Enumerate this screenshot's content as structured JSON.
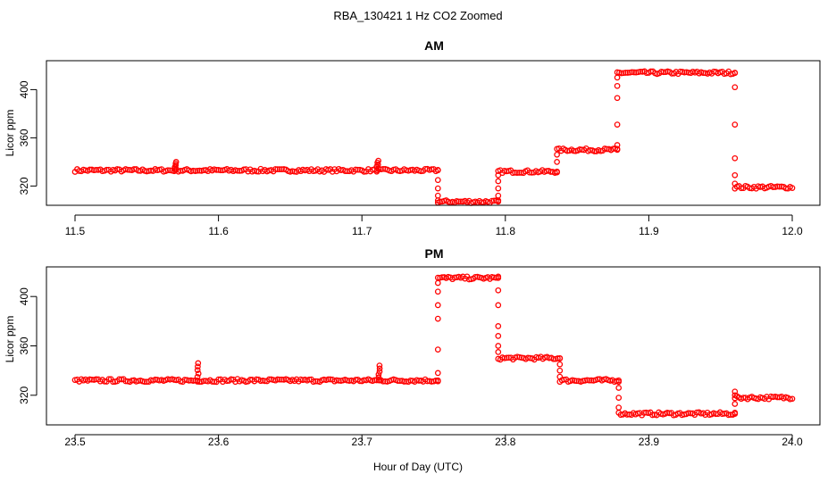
{
  "figure": {
    "title": "RBA_130421  1 Hz CO2 Zoomed",
    "xlabel": "Hour of Day (UTC)"
  },
  "colors": {
    "points": "#ff0000",
    "axis": "#000000"
  },
  "chart_data": [
    {
      "type": "scatter",
      "title": "AM",
      "xlabel": "Hour of Day (UTC)",
      "ylabel": "Licor ppm",
      "xlim": [
        11.5,
        12.0
      ],
      "ylim": [
        304,
        424
      ],
      "xticks": [
        11.5,
        11.6,
        11.7,
        11.8,
        11.9,
        12.0
      ],
      "xtick_labels": [
        "11.5",
        "11.6",
        "11.7",
        "11.8",
        "11.9",
        "12.0"
      ],
      "yticks": [
        320,
        360,
        400
      ],
      "ytick_labels": [
        "320",
        "360",
        "400"
      ],
      "marker": "open-circle",
      "segments": [
        {
          "x_start": 11.5,
          "x_end": 11.753,
          "y": 333
        },
        {
          "x_start": 11.753,
          "x_end": 11.795,
          "y": 307
        },
        {
          "x_start": 11.795,
          "x_end": 11.836,
          "y": 332
        },
        {
          "x_start": 11.836,
          "x_end": 11.878,
          "y": 350
        },
        {
          "x_start": 11.878,
          "x_end": 11.96,
          "y": 414
        },
        {
          "x_start": 11.96,
          "x_end": 12.0,
          "y": 319
        }
      ],
      "spikes": [
        {
          "x": 11.57,
          "y": 340
        },
        {
          "x": 11.711,
          "y": 341
        }
      ],
      "transitions": [
        {
          "x": 11.753,
          "y": [
            333,
            325,
            318,
            312,
            308
          ]
        },
        {
          "x": 11.795,
          "y": [
            307,
            312,
            318,
            324,
            329
          ]
        },
        {
          "x": 11.836,
          "y": [
            332,
            340,
            346
          ]
        },
        {
          "x": 11.878,
          "y": [
            350,
            354,
            371,
            393,
            403,
            410
          ]
        },
        {
          "x": 11.96,
          "y": [
            414,
            402,
            371,
            343,
            329,
            322
          ]
        }
      ]
    },
    {
      "type": "scatter",
      "title": "PM",
      "xlabel": "Hour of Day (UTC)",
      "ylabel": "Licor ppm",
      "xlim": [
        23.5,
        24.0
      ],
      "ylim": [
        296,
        424
      ],
      "xticks": [
        23.5,
        23.6,
        23.7,
        23.8,
        23.9,
        24.0
      ],
      "xtick_labels": [
        "23.5",
        "23.6",
        "23.7",
        "23.8",
        "23.9",
        "24.0"
      ],
      "yticks": [
        320,
        360,
        400
      ],
      "ytick_labels": [
        "320",
        "360",
        "400"
      ],
      "marker": "open-circle",
      "segments": [
        {
          "x_start": 23.5,
          "x_end": 23.753,
          "y": 332
        },
        {
          "x_start": 23.753,
          "x_end": 23.795,
          "y": 415
        },
        {
          "x_start": 23.795,
          "x_end": 23.838,
          "y": 350
        },
        {
          "x_start": 23.838,
          "x_end": 23.879,
          "y": 332
        },
        {
          "x_start": 23.879,
          "x_end": 23.96,
          "y": 305
        },
        {
          "x_start": 23.96,
          "x_end": 24.0,
          "y": 318
        }
      ],
      "spikes": [
        {
          "x": 23.586,
          "y": 346
        },
        {
          "x": 23.712,
          "y": 344
        }
      ],
      "transitions": [
        {
          "x": 23.753,
          "y": [
            332,
            338,
            357,
            382,
            393,
            404,
            411
          ]
        },
        {
          "x": 23.795,
          "y": [
            415,
            405,
            393,
            376,
            368,
            360,
            355
          ]
        },
        {
          "x": 23.838,
          "y": [
            350,
            345,
            340,
            335
          ]
        },
        {
          "x": 23.879,
          "y": [
            332,
            326,
            318,
            310
          ]
        },
        {
          "x": 23.96,
          "y": [
            305,
            313,
            320,
            323
          ]
        }
      ]
    }
  ]
}
